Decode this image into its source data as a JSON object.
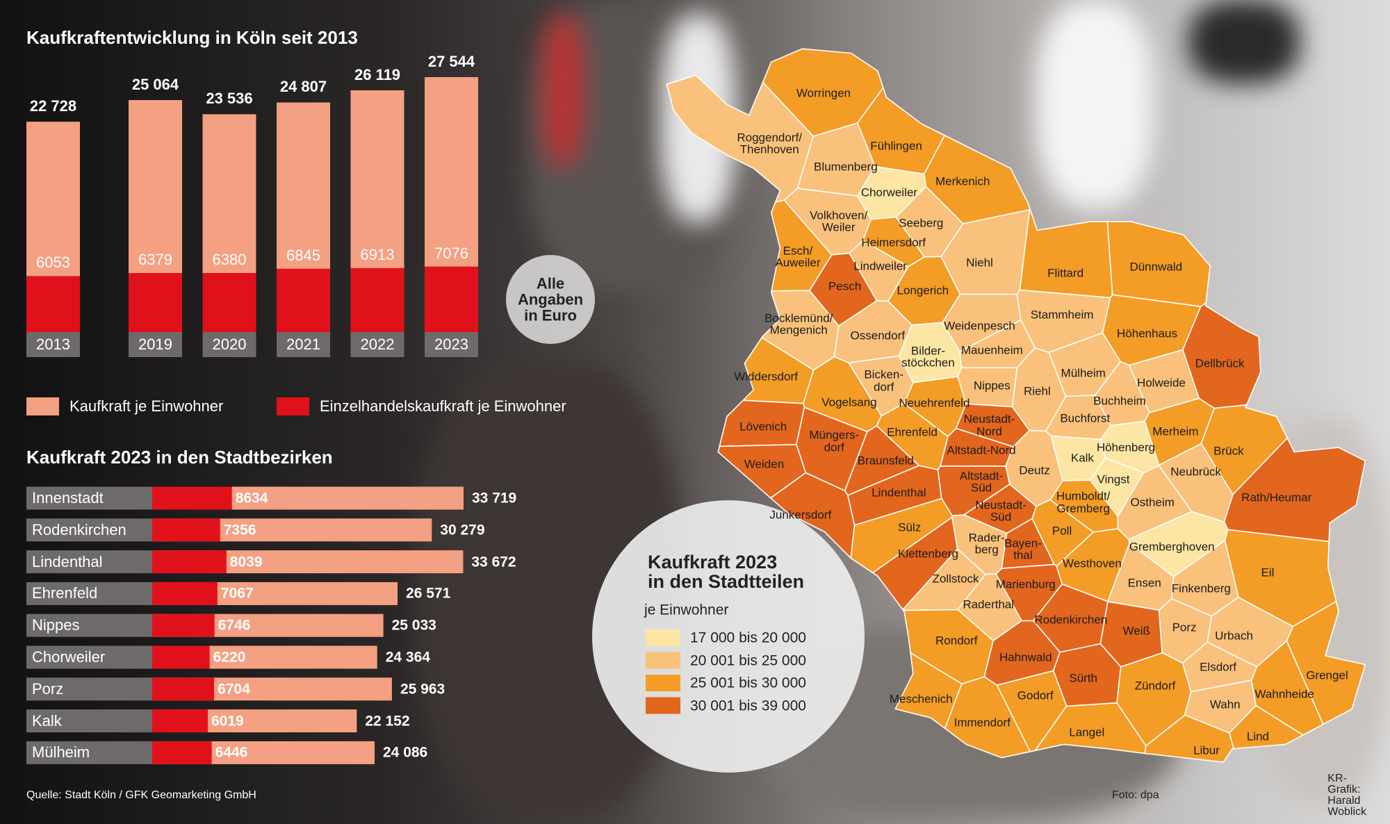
{
  "chart_data": [
    {
      "type": "bar",
      "title": "Kaufkraftentwicklung in Köln seit 2013",
      "annotation": "Alle\nAngaben\nin Euro",
      "categories": [
        "2013",
        "2019",
        "2020",
        "2021",
        "2022",
        "2023"
      ],
      "series": [
        {
          "name": "Kaufkraft je Einwohner",
          "color": "#f4a083",
          "values": [
            22728,
            25064,
            23536,
            24807,
            26119,
            27544
          ],
          "value_labels": [
            "22 728",
            "25 064",
            "23 536",
            "24 807",
            "26 119",
            "27 544"
          ]
        },
        {
          "name": "Einzelhandelskaufkraft je Einwohner",
          "color": "#e1111c",
          "values": [
            6053,
            6379,
            6380,
            6845,
            6913,
            7076
          ]
        }
      ]
    },
    {
      "type": "hbar",
      "title": "Kaufkraft 2023 in den Stadtbezirken",
      "categories": [
        "Innenstadt",
        "Rodenkirchen",
        "Lindenthal",
        "Ehrenfeld",
        "Nippes",
        "Chorweiler",
        "Porz",
        "Kalk",
        "Mülheim"
      ],
      "series": [
        {
          "color": "#f4a083",
          "values": [
            33719,
            30279,
            33672,
            26571,
            25033,
            24364,
            25963,
            22152,
            24086
          ],
          "value_labels": [
            "33 719",
            "30 279",
            "33 672",
            "26 571",
            "25 033",
            "24 364",
            "25 963",
            "22 152",
            "24 086"
          ]
        },
        {
          "color": "#e1111c",
          "values": [
            8634,
            7356,
            8039,
            7067,
            6746,
            6220,
            6704,
            6019,
            6446
          ]
        }
      ]
    }
  ],
  "map": {
    "title": "Kaufkraft 2023\nin den Stadtteilen",
    "subtitle": "je Einwohner",
    "legend": [
      {
        "label": "17 000 bis 20 000",
        "color": "#fde6a3"
      },
      {
        "label": "20 001 bis 25 000",
        "color": "#f9c17b"
      },
      {
        "label": "25 001 bis 30 000",
        "color": "#f39c26"
      },
      {
        "label": "30 001 bis 39 000",
        "color": "#e2661d"
      }
    ],
    "districts": [
      {
        "name": "Worringen",
        "color": "#f39c26"
      },
      {
        "name": "Roggendorf/\nThenhoven",
        "color": "#f9c17b"
      },
      {
        "name": "Blumenberg",
        "color": "#f9c17b"
      },
      {
        "name": "Fühlingen",
        "color": "#f39c26"
      },
      {
        "name": "Merkenich",
        "color": "#f39c26"
      },
      {
        "name": "Chorweiler",
        "color": "#fde6a3"
      },
      {
        "name": "Volkhoven/\nWeiler",
        "color": "#f9c17b"
      },
      {
        "name": "Seeberg",
        "color": "#f9c17b"
      },
      {
        "name": "Heimersdorf",
        "color": "#f39c26"
      },
      {
        "name": "Esch/\nAuweiler",
        "color": "#f39c26"
      },
      {
        "name": "Lindweiler",
        "color": "#f9c17b"
      },
      {
        "name": "Pesch",
        "color": "#e2661d"
      },
      {
        "name": "Longerich",
        "color": "#f39c26"
      },
      {
        "name": "Niehl",
        "color": "#f9c17b"
      },
      {
        "name": "Flittard",
        "color": "#f39c26"
      },
      {
        "name": "Dünnwald",
        "color": "#f39c26"
      },
      {
        "name": "Bocklemünd/\nMengenich",
        "color": "#f9c17b"
      },
      {
        "name": "Ossendorf",
        "color": "#f9c17b"
      },
      {
        "name": "Weidenpesch",
        "color": "#f9c17b"
      },
      {
        "name": "Stammheim",
        "color": "#f9c17b"
      },
      {
        "name": "Höhenhaus",
        "color": "#f39c26"
      },
      {
        "name": "Dellbrück",
        "color": "#e2661d"
      },
      {
        "name": "Bilder-\nstöckchen",
        "color": "#fde6a3"
      },
      {
        "name": "Mauenheim",
        "color": "#f9c17b"
      },
      {
        "name": "Widdersdorf",
        "color": "#f39c26"
      },
      {
        "name": "Bicken-\ndorf",
        "color": "#f9c17b"
      },
      {
        "name": "Nippes",
        "color": "#f9c17b"
      },
      {
        "name": "Riehl",
        "color": "#f9c17b"
      },
      {
        "name": "Mülheim",
        "color": "#f9c17b"
      },
      {
        "name": "Holweide",
        "color": "#f9c17b"
      },
      {
        "name": "Vogelsang",
        "color": "#f39c26"
      },
      {
        "name": "Neuehrenfeld",
        "color": "#f39c26"
      },
      {
        "name": "Buchheim",
        "color": "#f9c17b"
      },
      {
        "name": "Lövenich",
        "color": "#e2661d"
      },
      {
        "name": "Müngers-\ndorf",
        "color": "#e2661d"
      },
      {
        "name": "Ehrenfeld",
        "color": "#f39c26"
      },
      {
        "name": "Neustadt-\nNord",
        "color": "#e2661d"
      },
      {
        "name": "Buchforst",
        "color": "#f9c17b"
      },
      {
        "name": "Merheim",
        "color": "#f39c26"
      },
      {
        "name": "Weiden",
        "color": "#e2661d"
      },
      {
        "name": "Braunsfeld",
        "color": "#e2661d"
      },
      {
        "name": "Altstadt-Nord",
        "color": "#e2661d"
      },
      {
        "name": "Höhenberg",
        "color": "#fde6a3"
      },
      {
        "name": "Brück",
        "color": "#f39c26"
      },
      {
        "name": "Deutz",
        "color": "#f9c17b"
      },
      {
        "name": "Kalk",
        "color": "#fde6a3"
      },
      {
        "name": "Neubrück",
        "color": "#f9c17b"
      },
      {
        "name": "Altstadt-\nSüd",
        "color": "#e2661d"
      },
      {
        "name": "Vingst",
        "color": "#fde6a3"
      },
      {
        "name": "Lindenthal",
        "color": "#e2661d"
      },
      {
        "name": "Rath/Heumar",
        "color": "#e2661d"
      },
      {
        "name": "Junkersdorf",
        "color": "#e2661d"
      },
      {
        "name": "Neustadt-\nSüd",
        "color": "#e2661d"
      },
      {
        "name": "Humboldt/\nGremberg",
        "color": "#f39c26"
      },
      {
        "name": "Ostheim",
        "color": "#f9c17b"
      },
      {
        "name": "Sülz",
        "color": "#f39c26"
      },
      {
        "name": "Poll",
        "color": "#f39c26"
      },
      {
        "name": "Rader-\nberg",
        "color": "#f9c17b"
      },
      {
        "name": "Bayen-\nthal",
        "color": "#e2661d"
      },
      {
        "name": "Gremberghoven",
        "color": "#fde6a3"
      },
      {
        "name": "Klettenberg",
        "color": "#e2661d"
      },
      {
        "name": "Westhoven",
        "color": "#f39c26"
      },
      {
        "name": "Eil",
        "color": "#f39c26"
      },
      {
        "name": "Zollstock",
        "color": "#f9c17b"
      },
      {
        "name": "Marienburg",
        "color": "#e2661d"
      },
      {
        "name": "Ensen",
        "color": "#f9c17b"
      },
      {
        "name": "Finkenberg",
        "color": "#f9c17b"
      },
      {
        "name": "Raderthal",
        "color": "#f9c17b"
      },
      {
        "name": "Rodenkirchen",
        "color": "#e2661d"
      },
      {
        "name": "Weiß",
        "color": "#e2661d"
      },
      {
        "name": "Porz",
        "color": "#f9c17b"
      },
      {
        "name": "Urbach",
        "color": "#f9c17b"
      },
      {
        "name": "Rondorf",
        "color": "#f39c26"
      },
      {
        "name": "Hahnwald",
        "color": "#e2661d"
      },
      {
        "name": "Elsdorf",
        "color": "#f9c17b"
      },
      {
        "name": "Grengel",
        "color": "#f39c26"
      },
      {
        "name": "Sürth",
        "color": "#e2661d"
      },
      {
        "name": "Zündorf",
        "color": "#f39c26"
      },
      {
        "name": "Wahnheide",
        "color": "#f39c26"
      },
      {
        "name": "Godorf",
        "color": "#f39c26"
      },
      {
        "name": "Meschenich",
        "color": "#f39c26"
      },
      {
        "name": "Wahn",
        "color": "#f9c17b"
      },
      {
        "name": "Immendorf",
        "color": "#f39c26"
      },
      {
        "name": "Langel",
        "color": "#f39c26"
      },
      {
        "name": "Lind",
        "color": "#f39c26"
      },
      {
        "name": "Libur",
        "color": "#f39c26"
      }
    ]
  },
  "footer": {
    "source": "Quelle: Stadt Köln / GFK Geomarketing GmbH",
    "photo": "Foto: dpa",
    "credit": "KR-Grafik: Harald Woblick"
  }
}
